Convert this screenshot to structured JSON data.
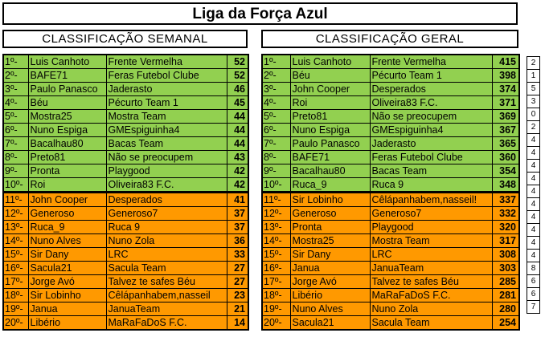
{
  "title": "Liga da Força Azul",
  "weekly": {
    "header": "CLASSIFICAÇÃO SEMANAL",
    "rows": [
      {
        "pos": "1º-",
        "player": "Luis Canhoto",
        "team": "Frente Vermelha",
        "pts": "52"
      },
      {
        "pos": "2º-",
        "player": "BAFE71",
        "team": "Feras Futebol Clube",
        "pts": "52"
      },
      {
        "pos": "3º-",
        "player": "Paulo Panasco",
        "team": "Jaderasto",
        "pts": "46"
      },
      {
        "pos": "4º-",
        "player": "Béu",
        "team": "Pécurto Team 1",
        "pts": "45"
      },
      {
        "pos": "5º-",
        "player": "Mostra25",
        "team": "Mostra Team",
        "pts": "44"
      },
      {
        "pos": "6º-",
        "player": "Nuno Espiga",
        "team": "GMEspiguinha4",
        "pts": "44"
      },
      {
        "pos": "7º-",
        "player": "Bacalhau80",
        "team": "Bacas Team",
        "pts": "44"
      },
      {
        "pos": "8º-",
        "player": "Preto81",
        "team": "Não se preocupem",
        "pts": "43"
      },
      {
        "pos": "9º-",
        "player": "Pronta",
        "team": "Playgood",
        "pts": "42"
      },
      {
        "pos": "10º-",
        "player": "Roi",
        "team": "Oliveira83 F.C.",
        "pts": "42"
      },
      {
        "pos": "11º-",
        "player": "John Cooper",
        "team": "Desperados",
        "pts": "41"
      },
      {
        "pos": "12º-",
        "player": "Generoso",
        "team": "Generoso7",
        "pts": "37"
      },
      {
        "pos": "13º-",
        "player": "Ruca_9",
        "team": "Ruca 9",
        "pts": "37"
      },
      {
        "pos": "14º-",
        "player": "Nuno Alves",
        "team": "Nuno Zola",
        "pts": "36"
      },
      {
        "pos": "15º-",
        "player": "Sir Dany",
        "team": "LRC",
        "pts": "33"
      },
      {
        "pos": "16º-",
        "player": "Sacula21",
        "team": "Sacula Team",
        "pts": "27"
      },
      {
        "pos": "17º-",
        "player": "Jorge Avó",
        "team": "Talvez te safes Béu",
        "pts": "27"
      },
      {
        "pos": "18º-",
        "player": "Sir Lobinho",
        "team": "Cêlápanhabem,nasseil",
        "pts": "23"
      },
      {
        "pos": "19º-",
        "player": "Janua",
        "team": "JanuaTeam",
        "pts": "21"
      },
      {
        "pos": "20º-",
        "player": "Libério",
        "team": "MaRaFaDoS F.C.",
        "pts": "14"
      }
    ]
  },
  "general": {
    "header": "CLASSIFICAÇÃO GERAL",
    "rows": [
      {
        "pos": "1º-",
        "player": "Luis Canhoto",
        "team": "Frente Vermelha",
        "pts": "415"
      },
      {
        "pos": "2º-",
        "player": "Béu",
        "team": "Pécurto Team 1",
        "pts": "398"
      },
      {
        "pos": "3º-",
        "player": "John Cooper",
        "team": "Desperados",
        "pts": "374"
      },
      {
        "pos": "4º-",
        "player": "Roi",
        "team": "Oliveira83 F.C.",
        "pts": "371"
      },
      {
        "pos": "5º-",
        "player": "Preto81",
        "team": "Não se preocupem",
        "pts": "369"
      },
      {
        "pos": "6º-",
        "player": "Nuno Espiga",
        "team": "GMEspiguinha4",
        "pts": "367"
      },
      {
        "pos": "7º-",
        "player": "Paulo Panasco",
        "team": "Jaderasto",
        "pts": "365"
      },
      {
        "pos": "8º-",
        "player": "BAFE71",
        "team": "Feras Futebol Clube",
        "pts": "360"
      },
      {
        "pos": "9º-",
        "player": "Bacalhau80",
        "team": "Bacas Team",
        "pts": "354"
      },
      {
        "pos": "10º-",
        "player": "Ruca_9",
        "team": "Ruca 9",
        "pts": "348"
      },
      {
        "pos": "11º-",
        "player": "Sir Lobinho",
        "team": "Cêlápanhabem,nasseil!",
        "pts": "337"
      },
      {
        "pos": "12º-",
        "player": "Generoso",
        "team": "Generoso7",
        "pts": "332"
      },
      {
        "pos": "13º-",
        "player": "Pronta",
        "team": "Playgood",
        "pts": "320"
      },
      {
        "pos": "14º-",
        "player": "Mostra25",
        "team": "Mostra Team",
        "pts": "317"
      },
      {
        "pos": "15º-",
        "player": "Sir Dany",
        "team": "LRC",
        "pts": "308"
      },
      {
        "pos": "16º-",
        "player": "Janua",
        "team": "JanuaTeam",
        "pts": "303"
      },
      {
        "pos": "17º-",
        "player": "Jorge Avó",
        "team": "Talvez te safes Béu",
        "pts": "285"
      },
      {
        "pos": "18º-",
        "player": "Libério",
        "team": "MaRaFaDoS F.C.",
        "pts": "281"
      },
      {
        "pos": "19º-",
        "player": "Nuno Alves",
        "team": "Nuno Zola",
        "pts": "280"
      },
      {
        "pos": "20º-",
        "player": "Sacula21",
        "team": "Sacula Team",
        "pts": "254"
      }
    ]
  },
  "deltas": [
    "2",
    "1",
    "5",
    "3",
    "0",
    "2",
    "4",
    "4",
    "4",
    "4",
    "4",
    "4",
    "4",
    "4",
    "4",
    "4",
    "8",
    "6",
    "6",
    "7"
  ],
  "colors": {
    "top10": "#92d050",
    "rest": "#ff9900",
    "border": "#000000"
  }
}
